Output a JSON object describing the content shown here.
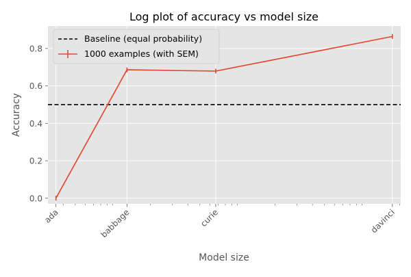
{
  "chart_data": {
    "type": "line",
    "title": "Log plot of accuracy vs model size",
    "xlabel": "Model size",
    "ylabel": "Accuracy",
    "x_scale": "log",
    "categories": [
      "ada",
      "babbage",
      "curie",
      "davinci"
    ],
    "x_params_millions": [
      350,
      1300,
      6700,
      175000
    ],
    "ylim": [
      -0.03,
      0.92
    ],
    "yticks": [
      "0.0",
      "0.2",
      "0.4",
      "0.6",
      "0.8"
    ],
    "ytick_values": [
      0.0,
      0.2,
      0.4,
      0.6,
      0.8
    ],
    "grid": true,
    "legend_position": "top-left",
    "series": [
      {
        "name": "1000 examples (with SEM)",
        "color": "#E24A33",
        "values": [
          0.0,
          0.686,
          0.679,
          0.864
        ],
        "sem": [
          0.0,
          0.01,
          0.01,
          0.01
        ]
      }
    ],
    "reference_lines": [
      {
        "name": "Baseline (equal probability)",
        "y": 0.5,
        "style": "dashed",
        "color": "#000000"
      }
    ]
  },
  "colors": {
    "plot_background": "#E5E5E5",
    "grid": "#FFFFFF",
    "text": "#555555",
    "title": "#000000"
  }
}
